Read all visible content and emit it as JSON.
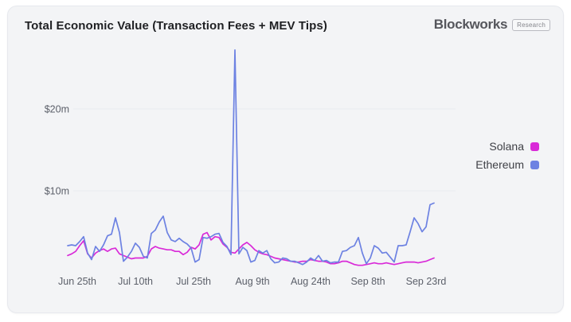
{
  "card": {
    "title": "Total Economic Value (Transaction Fees + MEV Tips)",
    "brand": {
      "name": "Blockworks",
      "badge": "Research"
    }
  },
  "legend": [
    {
      "label": "Solana",
      "color": "#d92ad8"
    },
    {
      "label": "Ethereum",
      "color": "#6d82e2"
    }
  ],
  "chart_data": {
    "type": "line",
    "title": "Total Economic Value (Transaction Fees + MEV Tips)",
    "unit": "USD millions per day",
    "grid": "horizontal",
    "legend_position": "right",
    "ylim": [
      0,
      28
    ],
    "y_ticks": [
      {
        "value": 10,
        "label": "$10m"
      },
      {
        "value": 20,
        "label": "$20m"
      }
    ],
    "x_tick_labels": [
      "Jun 25th",
      "Jul 10th",
      "Jul 25th",
      "Aug 9th",
      "Aug 24th",
      "Sep 8th",
      "Sep 23rd"
    ],
    "x_tick_positions": [
      2.4,
      17,
      31.6,
      46.4,
      61,
      75.4,
      90
    ],
    "x_range_dates": [
      "Jun 23",
      "Sep 25"
    ],
    "series": [
      {
        "name": "Solana",
        "color": "#d92ad8",
        "values": [
          2.1,
          2.3,
          2.6,
          3.3,
          3.9,
          2.3,
          1.8,
          2.4,
          2.7,
          2.9,
          2.6,
          2.9,
          3.0,
          2.3,
          2.1,
          1.9,
          1.7,
          1.8,
          1.8,
          1.8,
          2.0,
          2.9,
          3.2,
          3.0,
          2.9,
          2.8,
          2.8,
          2.6,
          2.6,
          2.2,
          2.5,
          3.1,
          2.9,
          3.4,
          4.7,
          4.9,
          4.0,
          4.4,
          4.3,
          3.5,
          3.1,
          2.5,
          2.4,
          2.9,
          3.4,
          3.7,
          3.3,
          2.8,
          2.5,
          2.3,
          2.2,
          2.0,
          1.8,
          1.7,
          1.6,
          1.5,
          1.4,
          1.3,
          1.3,
          1.4,
          1.4,
          1.6,
          1.5,
          1.4,
          1.4,
          1.3,
          1.1,
          1.1,
          1.2,
          1.4,
          1.4,
          1.2,
          1.0,
          0.9,
          0.9,
          1.0,
          1.1,
          1.2,
          1.1,
          1.1,
          1.2,
          1.1,
          1.0,
          1.1,
          1.2,
          1.3,
          1.3,
          1.3,
          1.2,
          1.3,
          1.4,
          1.6,
          1.8
        ]
      },
      {
        "name": "Ethereum",
        "color": "#6d82e2",
        "values": [
          3.3,
          3.4,
          3.3,
          3.8,
          4.4,
          2.4,
          1.6,
          3.2,
          2.6,
          3.4,
          4.5,
          4.7,
          6.7,
          4.9,
          1.4,
          1.9,
          2.6,
          3.6,
          3.1,
          2.0,
          1.8,
          4.8,
          5.2,
          6.2,
          6.9,
          4.9,
          4.0,
          3.8,
          4.2,
          3.8,
          3.5,
          3.0,
          1.3,
          1.6,
          4.3,
          4.2,
          4.4,
          4.7,
          4.8,
          3.7,
          3.2,
          2.2,
          27.2,
          2.3,
          3.1,
          2.7,
          1.3,
          1.5,
          2.7,
          2.4,
          2.7,
          1.7,
          1.2,
          1.3,
          1.8,
          1.7,
          1.4,
          1.4,
          1.2,
          1.0,
          1.3,
          1.8,
          1.5,
          2.1,
          1.4,
          1.5,
          1.2,
          1.3,
          1.3,
          2.6,
          2.7,
          3.1,
          3.3,
          4.3,
          2.4,
          1.1,
          1.8,
          3.3,
          3.0,
          2.4,
          2.5,
          1.9,
          1.3,
          3.3,
          3.3,
          3.4,
          5.0,
          6.7,
          6.0,
          5.0,
          5.6,
          8.3,
          8.5
        ]
      }
    ]
  }
}
